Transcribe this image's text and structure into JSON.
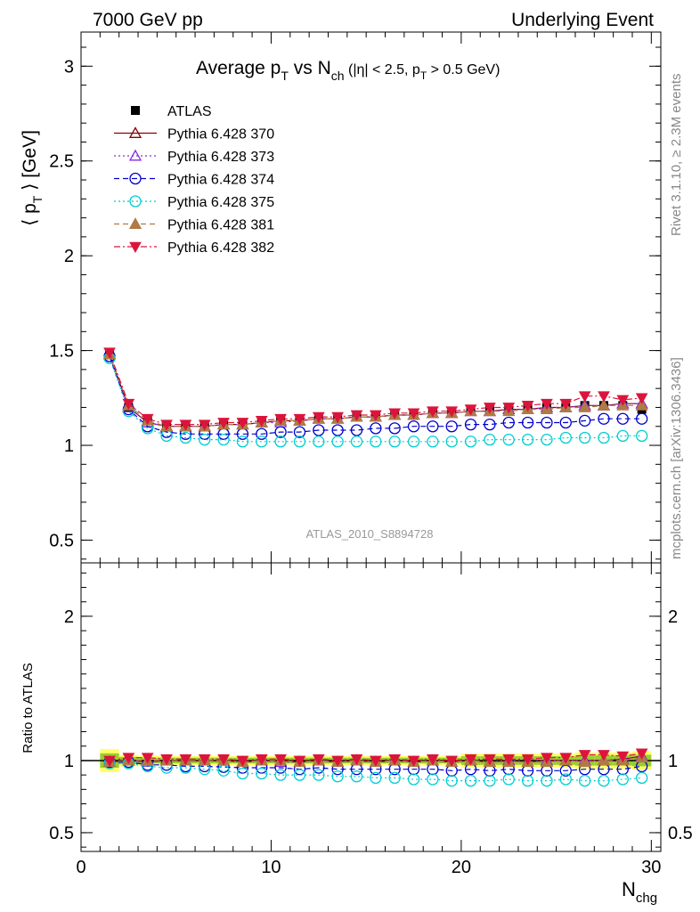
{
  "header": {
    "left": "7000 GeV pp",
    "right": "Underlying Event"
  },
  "title": {
    "main": "Average p",
    "main_sub": "T",
    "vs": " vs N",
    "vs_sub": "ch",
    "cuts": " (|η| < 2.5, p",
    "cuts_sub": "T",
    "cuts_end": " > 0.5 GeV)"
  },
  "side_labels": {
    "rivet": "Rivet 3.1.10, ≥ 2.3M events",
    "mcplots": "mcplots.cern.ch [arXiv:1306.3436]"
  },
  "watermark": "ATLAS_2010_S8894728",
  "axes": {
    "ylabel_top": "⟨ p",
    "ylabel_top_sub": "T",
    "ylabel_top_end": " ⟩ [GeV]",
    "ylabel_bottom": "Ratio to ATLAS",
    "xlabel": "N",
    "xlabel_sub": "chg"
  },
  "chart_data": [
    {
      "type": "line",
      "panel": "main",
      "xlim": [
        0,
        30.5
      ],
      "ylim": [
        0.38,
        3.18
      ],
      "yticks": [
        0.5,
        1,
        1.5,
        2,
        2.5,
        3
      ],
      "ytick_labels": [
        "0.5",
        "1",
        "1.5",
        "2",
        "2.5",
        "3"
      ],
      "x": [
        1.5,
        2.5,
        3.5,
        4.5,
        5.5,
        6.5,
        7.5,
        8.5,
        9.5,
        10.5,
        11.5,
        12.5,
        13.5,
        14.5,
        15.5,
        16.5,
        17.5,
        18.5,
        19.5,
        20.5,
        21.5,
        22.5,
        23.5,
        24.5,
        25.5,
        26.5,
        27.5,
        28.5,
        29.5
      ],
      "legend_position": "top-left",
      "series": [
        {
          "name": "ATLAS",
          "color": "#000000",
          "marker": "square",
          "line": "none",
          "values": [
            1.49,
            1.2,
            1.13,
            1.1,
            1.1,
            1.1,
            1.11,
            1.12,
            1.12,
            1.13,
            1.14,
            1.14,
            1.15,
            1.15,
            1.16,
            1.16,
            1.17,
            1.17,
            1.18,
            1.18,
            1.19,
            1.19,
            1.2,
            1.2,
            1.2,
            1.21,
            1.21,
            1.21,
            1.19
          ]
        },
        {
          "name": "Pythia 6.428 370",
          "color": "#8b0000",
          "marker": "triangle-open",
          "line": "solid",
          "values": [
            1.48,
            1.2,
            1.12,
            1.1,
            1.1,
            1.1,
            1.11,
            1.11,
            1.12,
            1.13,
            1.13,
            1.14,
            1.14,
            1.15,
            1.15,
            1.16,
            1.16,
            1.17,
            1.17,
            1.18,
            1.18,
            1.19,
            1.19,
            1.2,
            1.2,
            1.21,
            1.21,
            1.22,
            1.22
          ]
        },
        {
          "name": "Pythia 6.428 373",
          "color": "#8a2be2",
          "marker": "triangle-open",
          "line": "dotted",
          "values": [
            1.48,
            1.2,
            1.12,
            1.1,
            1.1,
            1.1,
            1.11,
            1.11,
            1.12,
            1.12,
            1.13,
            1.14,
            1.14,
            1.15,
            1.15,
            1.16,
            1.16,
            1.17,
            1.17,
            1.18,
            1.18,
            1.19,
            1.19,
            1.2,
            1.2,
            1.21,
            1.21,
            1.22,
            1.22
          ]
        },
        {
          "name": "Pythia 6.428 374",
          "color": "#0000cd",
          "marker": "circle-open",
          "line": "dashed",
          "values": [
            1.47,
            1.19,
            1.1,
            1.07,
            1.06,
            1.06,
            1.06,
            1.06,
            1.06,
            1.07,
            1.07,
            1.08,
            1.08,
            1.08,
            1.09,
            1.09,
            1.1,
            1.1,
            1.1,
            1.11,
            1.11,
            1.12,
            1.12,
            1.12,
            1.12,
            1.13,
            1.14,
            1.14,
            1.14
          ]
        },
        {
          "name": "Pythia 6.428 375",
          "color": "#00ced1",
          "marker": "circle-open",
          "line": "dotted",
          "values": [
            1.46,
            1.18,
            1.09,
            1.05,
            1.04,
            1.03,
            1.03,
            1.02,
            1.02,
            1.02,
            1.02,
            1.02,
            1.02,
            1.02,
            1.02,
            1.02,
            1.02,
            1.02,
            1.02,
            1.02,
            1.03,
            1.03,
            1.03,
            1.03,
            1.04,
            1.04,
            1.04,
            1.05,
            1.05
          ]
        },
        {
          "name": "Pythia 6.428 381",
          "color": "#b07a45",
          "marker": "triangle-filled",
          "line": "dashed",
          "values": [
            1.48,
            1.21,
            1.13,
            1.1,
            1.1,
            1.1,
            1.11,
            1.11,
            1.12,
            1.13,
            1.13,
            1.14,
            1.14,
            1.15,
            1.15,
            1.16,
            1.16,
            1.17,
            1.17,
            1.18,
            1.18,
            1.18,
            1.19,
            1.19,
            1.2,
            1.2,
            1.21,
            1.21,
            1.21
          ]
        },
        {
          "name": "Pythia 6.428 382",
          "color": "#dc143c",
          "marker": "triangle-down-filled",
          "line": "dashdot",
          "values": [
            1.49,
            1.22,
            1.14,
            1.11,
            1.11,
            1.11,
            1.12,
            1.12,
            1.13,
            1.14,
            1.14,
            1.15,
            1.15,
            1.16,
            1.16,
            1.17,
            1.17,
            1.18,
            1.18,
            1.19,
            1.2,
            1.2,
            1.21,
            1.22,
            1.22,
            1.26,
            1.26,
            1.24,
            1.25
          ]
        }
      ]
    },
    {
      "type": "line",
      "panel": "ratio",
      "xlim": [
        0,
        30.5
      ],
      "ylim": [
        0.37,
        2.37
      ],
      "yticks": [
        0.5,
        1,
        2
      ],
      "ytick_labels": [
        "0.5",
        "1",
        "2"
      ],
      "xticks": [
        0,
        10,
        20,
        30
      ],
      "xtick_labels": [
        "0",
        "10",
        "20",
        "30"
      ],
      "x": [
        1.5,
        2.5,
        3.5,
        4.5,
        5.5,
        6.5,
        7.5,
        8.5,
        9.5,
        10.5,
        11.5,
        12.5,
        13.5,
        14.5,
        15.5,
        16.5,
        17.5,
        18.5,
        19.5,
        20.5,
        21.5,
        22.5,
        23.5,
        24.5,
        25.5,
        26.5,
        27.5,
        28.5,
        29.5
      ],
      "band": {
        "color_inner": "#9acd32",
        "color_outer": "#ffff66",
        "half_width": [
          0.05,
          0.025,
          0.02,
          0.02,
          0.02,
          0.02,
          0.02,
          0.02,
          0.02,
          0.02,
          0.02,
          0.02,
          0.02,
          0.02,
          0.02,
          0.02,
          0.02,
          0.02,
          0.02,
          0.03,
          0.03,
          0.03,
          0.03,
          0.03,
          0.03,
          0.035,
          0.035,
          0.035,
          0.04
        ]
      },
      "series": [
        {
          "name": "Pythia 6.428 370",
          "color": "#8b0000",
          "marker": "triangle-open",
          "line": "solid",
          "values": [
            0.99,
            1.0,
            0.99,
            1.0,
            1.0,
            1.0,
            1.0,
            0.99,
            1.0,
            1.0,
            0.99,
            1.0,
            0.99,
            1.0,
            0.99,
            1.0,
            0.99,
            1.0,
            0.99,
            1.0,
            0.99,
            1.0,
            0.99,
            1.0,
            1.0,
            1.0,
            1.0,
            1.01,
            1.03
          ]
        },
        {
          "name": "Pythia 6.428 373",
          "color": "#8a2be2",
          "marker": "triangle-open",
          "line": "dotted",
          "values": [
            0.99,
            1.0,
            0.99,
            1.0,
            1.0,
            1.0,
            1.0,
            0.99,
            1.0,
            0.99,
            0.99,
            1.0,
            0.99,
            1.0,
            0.99,
            1.0,
            0.99,
            1.0,
            0.99,
            1.0,
            0.99,
            1.0,
            0.99,
            1.0,
            1.0,
            1.0,
            1.0,
            1.01,
            1.03
          ]
        },
        {
          "name": "Pythia 6.428 374",
          "color": "#0000cd",
          "marker": "circle-open",
          "line": "dashed",
          "values": [
            0.99,
            0.99,
            0.97,
            0.97,
            0.96,
            0.96,
            0.955,
            0.95,
            0.95,
            0.95,
            0.94,
            0.95,
            0.94,
            0.94,
            0.94,
            0.94,
            0.94,
            0.94,
            0.93,
            0.94,
            0.93,
            0.94,
            0.93,
            0.93,
            0.93,
            0.94,
            0.94,
            0.94,
            0.96
          ]
        },
        {
          "name": "Pythia 6.428 375",
          "color": "#00ced1",
          "marker": "circle-open",
          "line": "dotted",
          "values": [
            0.98,
            0.98,
            0.96,
            0.95,
            0.95,
            0.94,
            0.93,
            0.91,
            0.91,
            0.9,
            0.9,
            0.9,
            0.89,
            0.89,
            0.88,
            0.88,
            0.87,
            0.87,
            0.86,
            0.86,
            0.86,
            0.87,
            0.86,
            0.86,
            0.87,
            0.86,
            0.86,
            0.87,
            0.88
          ]
        },
        {
          "name": "Pythia 6.428 381",
          "color": "#b07a45",
          "marker": "triangle-filled",
          "line": "dashed",
          "values": [
            0.99,
            1.0,
            1.0,
            1.0,
            1.0,
            1.0,
            1.0,
            0.99,
            1.0,
            1.0,
            0.99,
            1.0,
            0.99,
            1.0,
            0.99,
            1.0,
            0.99,
            1.0,
            0.99,
            1.0,
            0.99,
            0.99,
            0.99,
            0.99,
            1.0,
            0.99,
            1.0,
            1.0,
            1.02
          ]
        },
        {
          "name": "Pythia 6.428 382",
          "color": "#dc143c",
          "marker": "triangle-down-filled",
          "line": "dashdot",
          "values": [
            1.0,
            1.02,
            1.02,
            1.01,
            1.01,
            1.01,
            1.01,
            1.0,
            1.01,
            1.01,
            1.0,
            1.01,
            1.0,
            1.01,
            1.0,
            1.01,
            1.0,
            1.01,
            1.0,
            1.01,
            1.01,
            1.01,
            1.01,
            1.02,
            1.02,
            1.04,
            1.04,
            1.03,
            1.05
          ]
        }
      ]
    }
  ]
}
